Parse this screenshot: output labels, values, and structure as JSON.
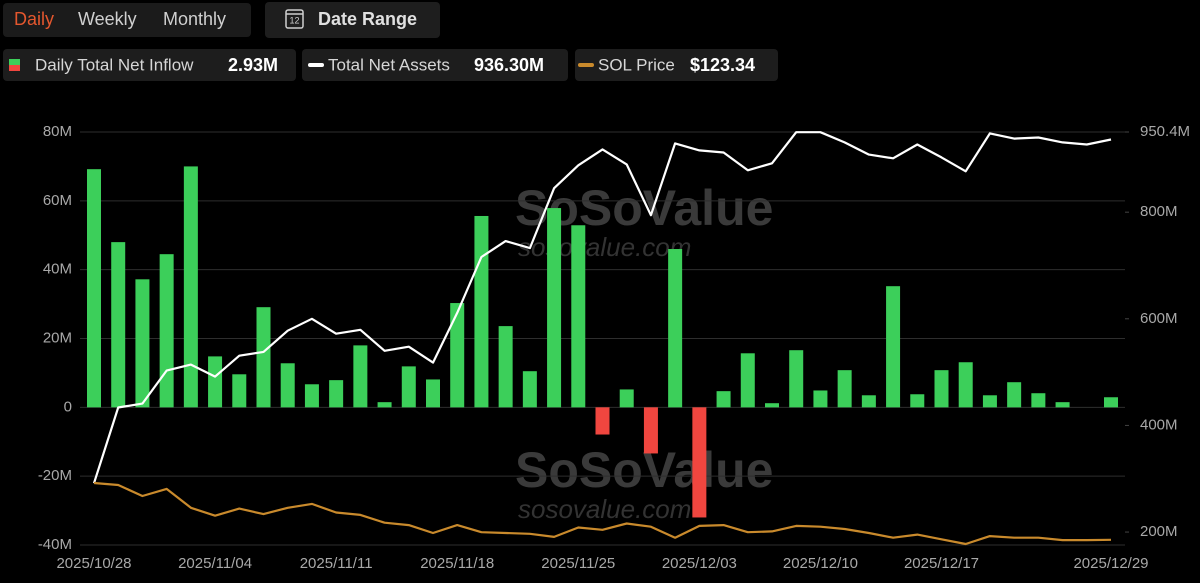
{
  "tabs": [
    "Daily",
    "Weekly",
    "Monthly"
  ],
  "active_tab": 0,
  "active_color": "#e4572e",
  "date_range_button": "Date Range",
  "date_range_icon": "12",
  "watermark": {
    "name": "SoSoValue",
    "url": "sosovalue.com"
  },
  "chart_data": {
    "type": "combo",
    "categories": [
      "2025/10/28",
      null,
      null,
      null,
      null,
      "2025/11/04",
      null,
      null,
      null,
      null,
      "2025/11/11",
      null,
      null,
      null,
      null,
      "2025/11/18",
      null,
      null,
      null,
      null,
      "2025/11/25",
      null,
      null,
      null,
      null,
      "2025/12/03",
      null,
      null,
      null,
      null,
      "2025/12/10",
      null,
      null,
      null,
      null,
      "2025/12/17",
      null,
      null,
      null,
      null,
      null,
      null,
      "2025/12/29"
    ],
    "ylim": [
      -40,
      80
    ],
    "yticks": [
      {
        "value": -40,
        "label": "-40M"
      },
      {
        "value": -20,
        "label": "-20M"
      },
      {
        "value": 0,
        "label": "0"
      },
      {
        "value": 20,
        "label": "20M"
      },
      {
        "value": 40,
        "label": "40M"
      },
      {
        "value": 60,
        "label": "60M"
      },
      {
        "value": 80,
        "label": "80M"
      }
    ],
    "y2lim": [
      175.7,
      950.4
    ],
    "y2ticks": [
      {
        "value": 200,
        "label": "200M"
      },
      {
        "value": 400,
        "label": "400M"
      },
      {
        "value": 600,
        "label": "600M"
      },
      {
        "value": 800,
        "label": "800M"
      },
      {
        "value": 950.4,
        "label": "950.4M"
      }
    ],
    "grid": true,
    "series": [
      {
        "name": "Daily Total Net Inflow",
        "current_label": "2.93M",
        "type": "bar",
        "color": "#3ccf5a",
        "negative_color": "#f0463f",
        "values": [
          69.2,
          48,
          37.2,
          44.5,
          70,
          14.8,
          9.6,
          29.1,
          12.8,
          6.7,
          7.9,
          18,
          1.5,
          11.9,
          8.1,
          30.3,
          55.6,
          23.6,
          10.5,
          57.9,
          52.9,
          -7.9,
          5.2,
          -13.4,
          46,
          -32,
          4.7,
          15.7,
          1.2,
          16.6,
          4.9,
          10.8,
          3.5,
          35.2,
          3.8,
          10.8,
          13.1,
          3.5,
          7.3,
          4.1,
          1.5,
          0,
          2.93
        ]
      },
      {
        "name": "Total Net Assets",
        "current_label": "936.30M",
        "type": "line",
        "axis": "y2",
        "color": "#ffffff",
        "values": [
          291.6,
          433.6,
          441,
          502.8,
          514,
          491.6,
          530.8,
          538,
          577.6,
          600,
          572,
          579.4,
          540,
          547.7,
          517.8,
          611,
          716,
          745.8,
          732.7,
          844.9,
          887.9,
          917.8,
          889.7,
          794.4,
          929,
          915.9,
          912,
          878.5,
          891.6,
          950,
          950,
          930.8,
          908,
          901,
          927,
          902.8,
          876.6,
          947.7,
          938,
          940,
          930.8,
          927,
          936.3
        ]
      },
      {
        "name": "SOL Price",
        "current_label": "$123.34",
        "type": "line",
        "axis": "hidden",
        "color": "#c98a2c",
        "values": [
          195.5,
          193,
          179,
          188,
          164,
          154,
          163,
          156,
          164,
          169,
          158,
          155,
          145,
          142,
          132,
          142,
          133,
          132,
          131,
          127,
          139,
          136,
          144,
          140,
          126,
          141,
          142,
          133,
          134,
          141,
          140,
          137,
          132,
          126,
          130,
          124,
          118,
          128,
          126,
          126,
          123,
          123,
          123.34
        ]
      }
    ]
  }
}
